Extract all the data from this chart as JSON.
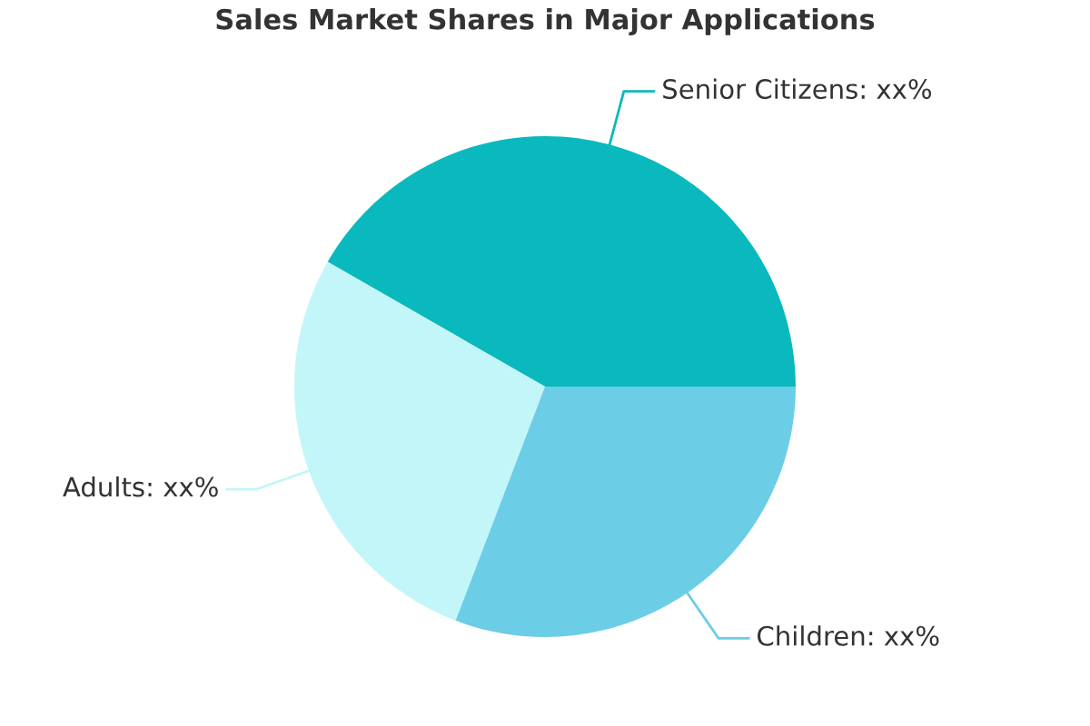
{
  "chart_data": {
    "type": "pie",
    "title": "Sales Market Shares in Major Applications",
    "categories": [
      "Senior Citizens",
      "Adults",
      "Children"
    ],
    "values": [
      41.7,
      27.5,
      30.8
    ],
    "colors": [
      "#0ab9bd",
      "#c3f6f8",
      "#6ccde6"
    ],
    "value_labels": [
      "xx%",
      "xx%",
      "xx%"
    ]
  }
}
